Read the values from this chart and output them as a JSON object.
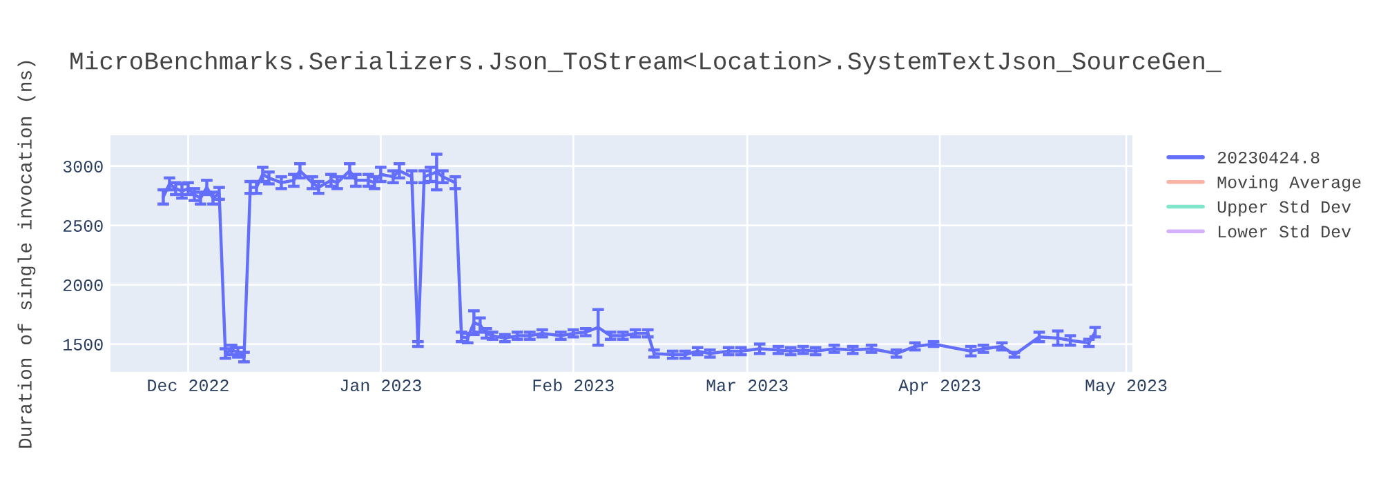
{
  "chart_data": {
    "type": "line",
    "title": "MicroBenchmarks.Serializers.Json_ToStream<Location>.SystemTextJson_SourceGen_",
    "ylabel": "Duration of single invocation (ns)",
    "x": [
      "2022-11-27",
      "2022-11-28",
      "2022-11-29",
      "2022-11-30",
      "2022-12-01",
      "2022-12-02",
      "2022-12-03",
      "2022-12-04",
      "2022-12-05",
      "2022-12-06",
      "2022-12-07",
      "2022-12-08",
      "2022-12-09",
      "2022-12-10",
      "2022-12-11",
      "2022-12-12",
      "2022-12-13",
      "2022-12-14",
      "2022-12-16",
      "2022-12-18",
      "2022-12-19",
      "2022-12-21",
      "2022-12-22",
      "2022-12-24",
      "2022-12-25",
      "2022-12-27",
      "2022-12-28",
      "2022-12-30",
      "2022-12-31",
      "2023-01-01",
      "2023-01-03",
      "2023-01-04",
      "2023-01-06",
      "2023-01-07",
      "2023-01-08",
      "2023-01-09",
      "2023-01-10",
      "2023-01-11",
      "2023-01-13",
      "2023-01-14",
      "2023-01-15",
      "2023-01-16",
      "2023-01-17",
      "2023-01-18",
      "2023-01-19",
      "2023-01-21",
      "2023-01-23",
      "2023-01-25",
      "2023-01-27",
      "2023-01-30",
      "2023-02-01",
      "2023-02-03",
      "2023-02-05",
      "2023-02-07",
      "2023-02-09",
      "2023-02-11",
      "2023-02-13",
      "2023-02-14",
      "2023-02-17",
      "2023-02-19",
      "2023-02-21",
      "2023-02-23",
      "2023-02-26",
      "2023-02-28",
      "2023-03-03",
      "2023-03-06",
      "2023-03-08",
      "2023-03-10",
      "2023-03-12",
      "2023-03-15",
      "2023-03-18",
      "2023-03-21",
      "2023-03-25",
      "2023-03-28",
      "2023-03-31",
      "2023-04-06",
      "2023-04-08",
      "2023-04-11",
      "2023-04-13",
      "2023-04-17",
      "2023-04-20",
      "2023-04-22",
      "2023-04-25",
      "2023-04-26"
    ],
    "series": [
      {
        "name": "20230424.8",
        "color": "#636efa",
        "values": [
          2740,
          2850,
          2810,
          2790,
          2810,
          2760,
          2730,
          2820,
          2730,
          2770,
          1420,
          1450,
          1430,
          1390,
          2820,
          2820,
          2930,
          2900,
          2860,
          2880,
          2960,
          2860,
          2820,
          2880,
          2860,
          2960,
          2880,
          2880,
          2860,
          2930,
          2910,
          2960,
          2910,
          1500,
          2910,
          2930,
          2950,
          2910,
          2860,
          1560,
          1550,
          1680,
          1660,
          1590,
          1570,
          1550,
          1570,
          1570,
          1590,
          1570,
          1590,
          1600,
          1640,
          1570,
          1570,
          1590,
          1590,
          1420,
          1410,
          1410,
          1440,
          1420,
          1440,
          1440,
          1460,
          1450,
          1440,
          1450,
          1440,
          1460,
          1450,
          1460,
          1420,
          1480,
          1500,
          1440,
          1460,
          1480,
          1410,
          1560,
          1550,
          1530,
          1510,
          1600
        ],
        "errors": [
          60,
          50,
          50,
          60,
          50,
          50,
          50,
          60,
          50,
          50,
          40,
          40,
          40,
          40,
          50,
          50,
          60,
          50,
          50,
          50,
          60,
          50,
          50,
          50,
          50,
          60,
          50,
          50,
          50,
          60,
          50,
          60,
          50,
          20,
          50,
          60,
          150,
          50,
          50,
          40,
          40,
          100,
          60,
          40,
          30,
          30,
          30,
          30,
          30,
          30,
          30,
          30,
          150,
          30,
          30,
          30,
          30,
          30,
          30,
          30,
          30,
          30,
          30,
          30,
          40,
          30,
          30,
          30,
          30,
          30,
          30,
          30,
          30,
          30,
          20,
          40,
          30,
          30,
          20,
          40,
          60,
          40,
          30,
          40
        ]
      },
      {
        "name": "Moving Average",
        "color": "#f7b3a5",
        "values": [
          null,
          null,
          null,
          null,
          null,
          null,
          null,
          null,
          null,
          null,
          null,
          null,
          null,
          null,
          null,
          null,
          null,
          null,
          null,
          null,
          null,
          null,
          null,
          null,
          null,
          null,
          null,
          null,
          null,
          null,
          null,
          null,
          null,
          null,
          null,
          null,
          null,
          null,
          null,
          null,
          null,
          null,
          null,
          null,
          null,
          null,
          null,
          null,
          null,
          null,
          null,
          null,
          null,
          null,
          null,
          null,
          null,
          null,
          null,
          null,
          null,
          null,
          null,
          null,
          null,
          null,
          null,
          null,
          null,
          null,
          null,
          null,
          null,
          null,
          null,
          null,
          null,
          null,
          null,
          null,
          null,
          null,
          null,
          null
        ]
      },
      {
        "name": "Upper Std Dev",
        "color": "#80e5ca",
        "values": [
          null,
          null,
          null,
          null,
          null,
          null,
          null,
          null,
          null,
          null,
          null,
          null,
          null,
          null,
          null,
          null,
          null,
          null,
          null,
          null,
          null,
          null,
          null,
          null,
          null,
          null,
          null,
          null,
          null,
          null,
          null,
          null,
          null,
          null,
          null,
          null,
          null,
          null,
          null,
          null,
          null,
          null,
          null,
          null,
          null,
          null,
          null,
          null,
          null,
          null,
          null,
          null,
          null,
          null,
          null,
          null,
          null,
          null,
          null,
          null,
          null,
          null,
          null,
          null,
          null,
          null,
          null,
          null,
          null,
          null,
          null,
          null,
          null,
          null,
          null,
          null,
          null,
          null,
          null,
          null,
          null,
          null,
          null,
          null
        ]
      },
      {
        "name": "Lower Std Dev",
        "color": "#d5b1fc",
        "values": [
          null,
          null,
          null,
          null,
          null,
          null,
          null,
          null,
          null,
          null,
          null,
          null,
          null,
          null,
          null,
          null,
          null,
          null,
          null,
          null,
          null,
          null,
          null,
          null,
          null,
          null,
          null,
          null,
          null,
          null,
          null,
          null,
          null,
          null,
          null,
          null,
          null,
          null,
          null,
          null,
          null,
          null,
          null,
          null,
          null,
          null,
          null,
          null,
          null,
          null,
          null,
          null,
          null,
          null,
          null,
          null,
          null,
          null,
          null,
          null,
          null,
          null,
          null,
          null,
          null,
          null,
          null,
          null,
          null,
          null,
          null,
          null,
          null,
          null,
          null,
          null,
          null,
          null,
          null,
          null,
          null,
          null,
          null,
          null
        ]
      }
    ],
    "xlim": [
      "2022-11-18T12:00",
      "2023-05-02"
    ],
    "xticks": [
      {
        "value": "2022-12-01",
        "label": "Dec 2022"
      },
      {
        "value": "2023-01-01",
        "label": "Jan 2023"
      },
      {
        "value": "2023-02-01",
        "label": "Feb 2023"
      },
      {
        "value": "2023-03-01",
        "label": "Mar 2023"
      },
      {
        "value": "2023-04-01",
        "label": "Apr 2023"
      },
      {
        "value": "2023-05-01",
        "label": "May 2023"
      }
    ],
    "ylim": [
      1265,
      3260
    ],
    "yticks": [
      1500,
      2000,
      2500,
      3000
    ],
    "grid": true,
    "legend": "right",
    "marker": "none",
    "line_style": "solid"
  }
}
